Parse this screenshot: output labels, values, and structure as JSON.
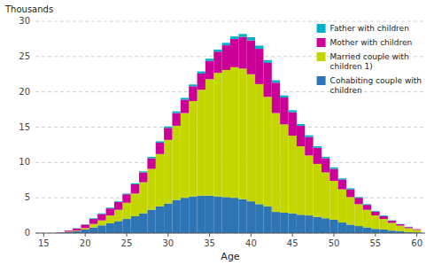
{
  "chart_data": {
    "type": "bar",
    "stacked": true,
    "xlabel": "Age",
    "ylabel": "Thousands",
    "x": [
      15,
      16,
      17,
      18,
      19,
      20,
      21,
      22,
      23,
      24,
      25,
      26,
      27,
      28,
      29,
      30,
      31,
      32,
      33,
      34,
      35,
      36,
      37,
      38,
      39,
      40,
      41,
      42,
      43,
      44,
      45,
      46,
      47,
      48,
      49,
      50,
      51,
      52,
      53,
      54,
      55,
      56,
      57,
      58,
      59,
      60
    ],
    "series": [
      {
        "name": "Cohabiting couple with\nchildren",
        "color": "#2E75B6",
        "values": [
          0.0,
          0.0,
          0.05,
          0.15,
          0.25,
          0.5,
          0.8,
          1.1,
          1.4,
          1.7,
          2.0,
          2.4,
          2.8,
          3.3,
          3.8,
          4.2,
          4.7,
          5.0,
          5.2,
          5.3,
          5.3,
          5.2,
          5.1,
          5.0,
          4.8,
          4.5,
          4.1,
          3.8,
          3.0,
          2.9,
          2.8,
          2.6,
          2.5,
          2.3,
          2.1,
          1.9,
          1.5,
          1.2,
          1.0,
          0.8,
          0.6,
          0.5,
          0.35,
          0.25,
          0.15,
          0.1
        ]
      },
      {
        "name": "Married couple with\nchildren 1)",
        "color": "#C4D600",
        "values": [
          0.0,
          0.0,
          0.0,
          0.05,
          0.1,
          0.2,
          0.5,
          0.7,
          1.1,
          1.6,
          2.3,
          3.2,
          4.4,
          5.8,
          7.4,
          9.0,
          10.5,
          12.0,
          13.5,
          15.0,
          16.5,
          17.5,
          18.0,
          18.5,
          18.5,
          18.0,
          17.0,
          15.5,
          14.0,
          12.5,
          11.0,
          9.7,
          8.5,
          7.5,
          6.5,
          5.5,
          4.7,
          3.9,
          3.1,
          2.5,
          1.9,
          1.5,
          1.1,
          0.8,
          0.55,
          0.35
        ]
      },
      {
        "name": "Mother with children",
        "color": "#CC0099",
        "values": [
          0.0,
          0.0,
          0.05,
          0.15,
          0.3,
          0.5,
          0.7,
          0.9,
          1.0,
          1.1,
          1.2,
          1.3,
          1.4,
          1.5,
          1.6,
          1.7,
          1.8,
          1.9,
          2.1,
          2.3,
          2.6,
          3.0,
          3.5,
          4.0,
          4.5,
          4.8,
          5.0,
          4.8,
          4.3,
          3.8,
          3.3,
          2.9,
          2.6,
          2.3,
          2.0,
          1.7,
          1.4,
          1.1,
          0.9,
          0.7,
          0.55,
          0.4,
          0.3,
          0.2,
          0.15,
          0.1
        ]
      },
      {
        "name": "Father with children",
        "color": "#00B0C8",
        "values": [
          0.0,
          0.0,
          0.0,
          0.0,
          0.05,
          0.05,
          0.1,
          0.1,
          0.1,
          0.1,
          0.1,
          0.15,
          0.15,
          0.2,
          0.2,
          0.2,
          0.25,
          0.25,
          0.25,
          0.3,
          0.3,
          0.3,
          0.35,
          0.35,
          0.4,
          0.45,
          0.45,
          0.4,
          0.35,
          0.3,
          0.3,
          0.25,
          0.25,
          0.2,
          0.2,
          0.2,
          0.15,
          0.15,
          0.1,
          0.1,
          0.1,
          0.1,
          0.05,
          0.05,
          0.05,
          0.0
        ]
      }
    ],
    "xlim": [
      14,
      61
    ],
    "xticks": [
      15,
      20,
      25,
      30,
      35,
      40,
      45,
      50,
      55,
      60
    ],
    "ylim": [
      0,
      30
    ],
    "yticks": [
      0,
      5,
      10,
      15,
      20,
      25,
      30
    ],
    "grid": true,
    "legend": "upper right"
  }
}
